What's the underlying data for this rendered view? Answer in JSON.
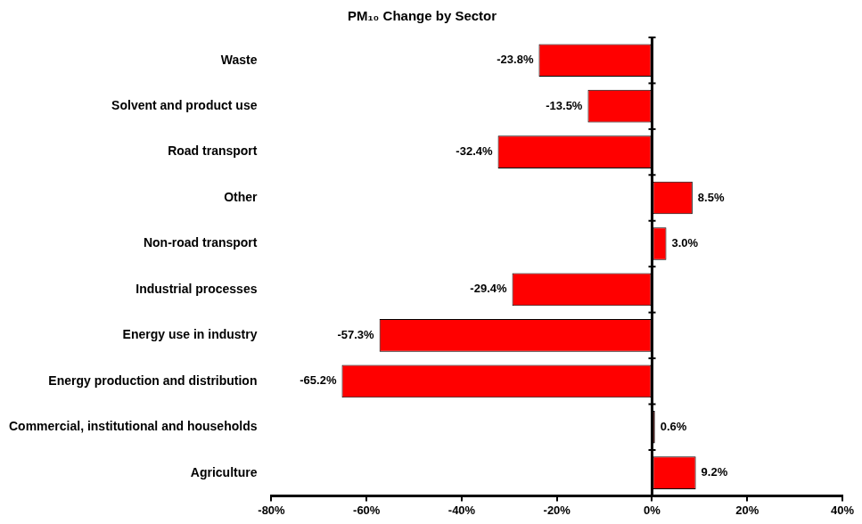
{
  "chart_data": {
    "type": "bar",
    "title": "PM₁₀ Change by Sector",
    "orientation": "horizontal",
    "categories": [
      "Waste",
      "Solvent and product use",
      "Road transport",
      "Other",
      "Non-road transport",
      "Industrial processes",
      "Energy use in industry",
      "Energy production and distribution",
      "Commercial, institutional and households",
      "Agriculture"
    ],
    "values": [
      -23.8,
      -13.5,
      -32.4,
      8.5,
      3.0,
      -29.4,
      -57.3,
      -65.2,
      0.6,
      9.2
    ],
    "value_labels": [
      "-23.8%",
      "-13.5%",
      "-32.4%",
      "8.5%",
      "3.0%",
      "-29.4%",
      "-57.3%",
      "-65.2%",
      "0.6%",
      "9.2%"
    ],
    "color": "#ff0000",
    "data_labels": true,
    "grid": false,
    "xlim": [
      -80,
      40
    ],
    "xticks": [
      {
        "value": -80,
        "label": "-80%"
      },
      {
        "value": -60,
        "label": "-60%"
      },
      {
        "value": -40,
        "label": "-40%"
      },
      {
        "value": -20,
        "label": "-20%"
      },
      {
        "value": 0,
        "label": "0%"
      },
      {
        "value": 20,
        "label": "20%"
      },
      {
        "value": 40,
        "label": "40%"
      }
    ]
  }
}
